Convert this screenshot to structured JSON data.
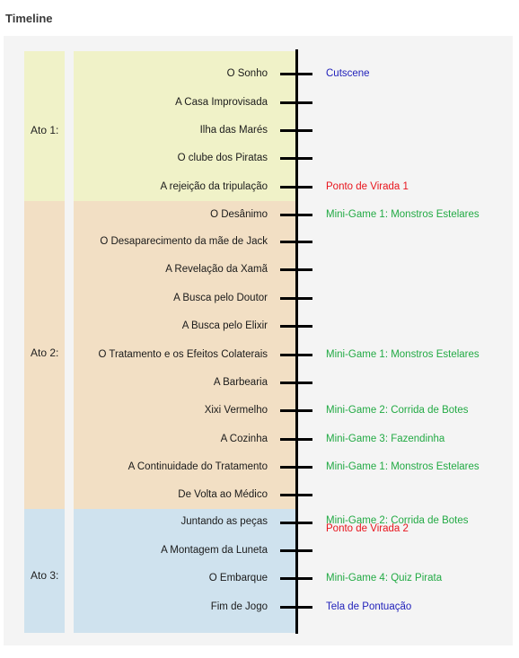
{
  "page_title": "Timeline",
  "colors": {
    "act1": "#f0f2c8",
    "act2": "#f2dfc4",
    "act3": "#cfe2ee",
    "cutscene": "#2222bb",
    "turning_point": "#e8141c",
    "minigame": "#22aa44",
    "score": "#2222bb"
  },
  "acts": [
    {
      "label": "Ato 1:"
    },
    {
      "label": "Ato 2:"
    },
    {
      "label": "Ato 3:"
    }
  ],
  "events": [
    {
      "label": "O Sonho"
    },
    {
      "label": "A Casa Improvisada"
    },
    {
      "label": "Ilha das Marés"
    },
    {
      "label": "O clube dos Piratas"
    },
    {
      "label": "A rejeição da tripulação"
    },
    {
      "label": "O Desânimo"
    },
    {
      "label": "O Desaparecimento da mãe de Jack"
    },
    {
      "label": "A Revelação da Xamã"
    },
    {
      "label": "A Busca pelo Doutor"
    },
    {
      "label": "A Busca pelo Elixir"
    },
    {
      "label": "O Tratamento e os Efeitos Colaterais"
    },
    {
      "label": "A Barbearia"
    },
    {
      "label": "Xixi Vermelho"
    },
    {
      "label": "A Cozinha"
    },
    {
      "label": "A Continuidade do Tratamento"
    },
    {
      "label": "De Volta ao Médico"
    },
    {
      "label": "Juntando as peças"
    },
    {
      "label": "A Montagem da Luneta"
    },
    {
      "label": "O Embarque"
    },
    {
      "label": "Fim de Jogo"
    }
  ],
  "notes": [
    {
      "label": "Cutscene",
      "kind": "cutscene"
    },
    {
      "label": "Ponto de Virada 1",
      "kind": "turning_point"
    },
    {
      "label": "Mini-Game 1: Monstros Estelares",
      "kind": "minigame"
    },
    {
      "label": "Mini-Game 1: Monstros Estelares",
      "kind": "minigame"
    },
    {
      "label": "Mini-Game 2: Corrida de Botes",
      "kind": "minigame"
    },
    {
      "label": "Mini-Game 3: Fazendinha",
      "kind": "minigame"
    },
    {
      "label": "Mini-Game 1: Monstros Estelares",
      "kind": "minigame"
    },
    {
      "label": "Mini-Game 2: Corrida de Botes",
      "kind": "minigame"
    },
    {
      "label": "Ponto de Virada 2",
      "kind": "turning_point"
    },
    {
      "label": "Mini-Game 4: Quiz Pirata",
      "kind": "minigame"
    },
    {
      "label": "Tela de Pontuação",
      "kind": "score"
    }
  ]
}
